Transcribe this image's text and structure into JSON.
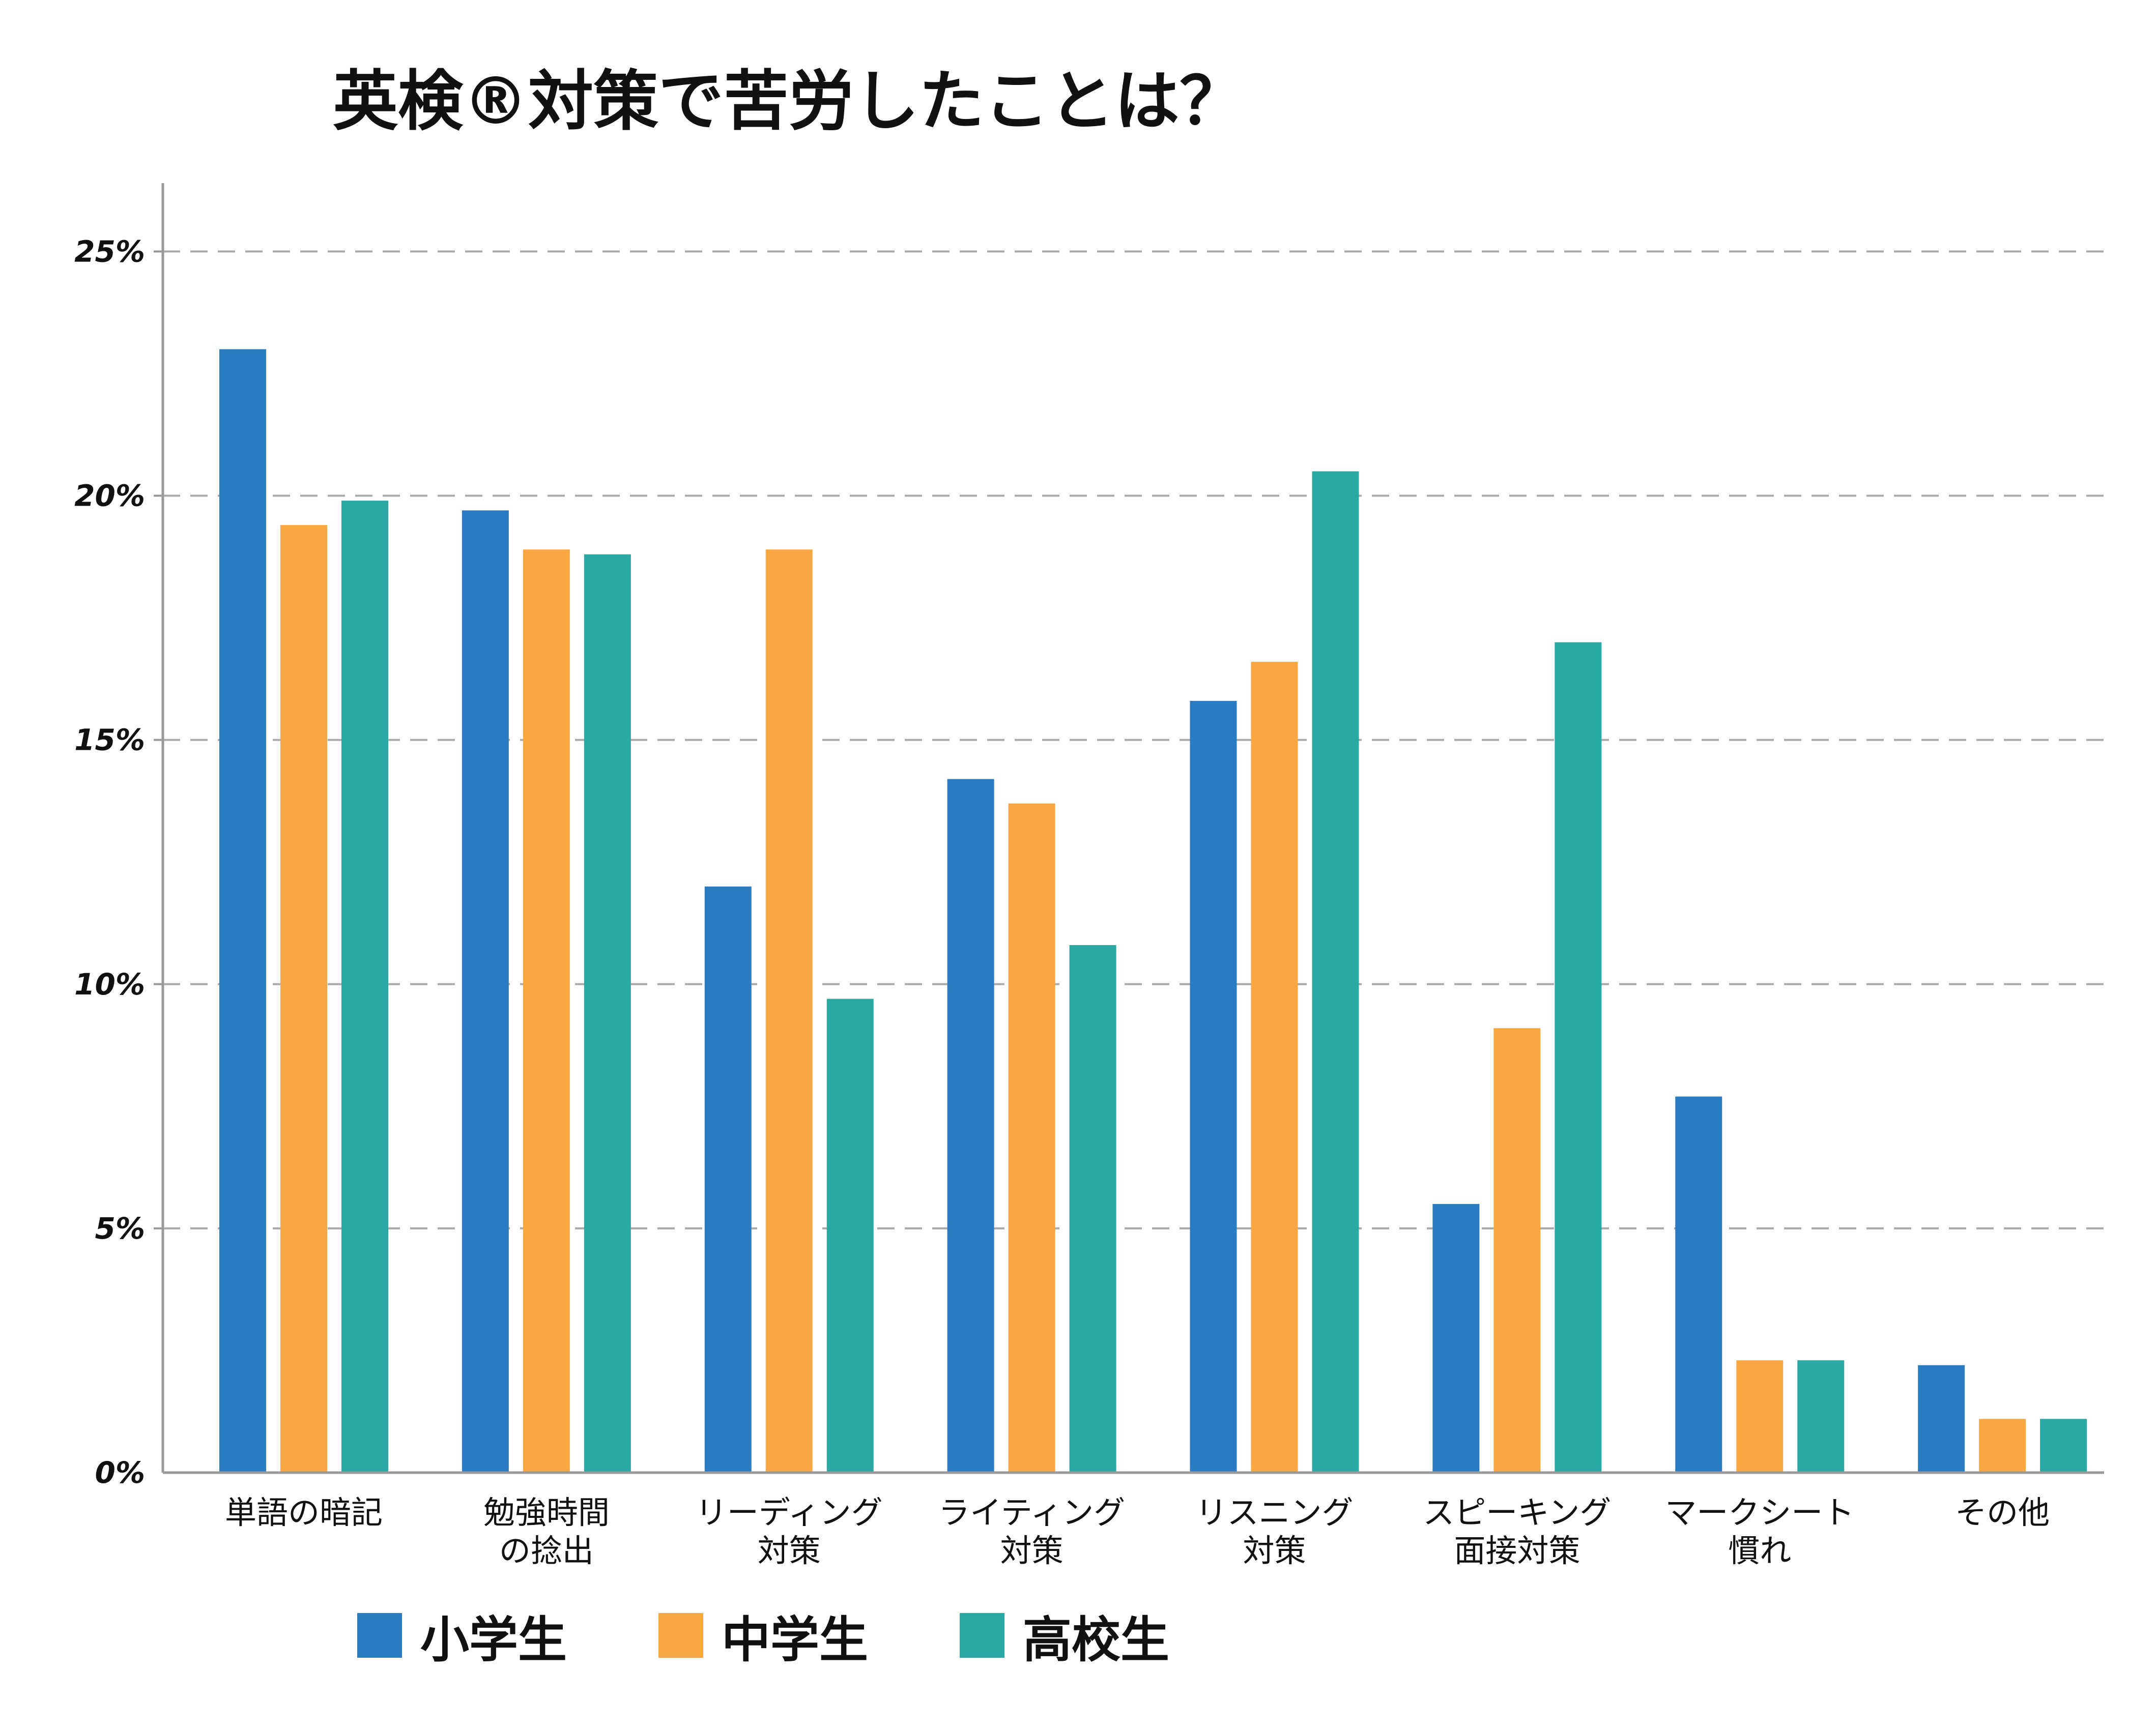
{
  "chart_data": {
    "type": "bar",
    "title": "英検®対策で苦労したことは？",
    "categories": [
      [
        "単語の暗記"
      ],
      [
        "勉強時間",
        "の捻出"
      ],
      [
        "リーディング",
        "対策"
      ],
      [
        "ライティング",
        "対策"
      ],
      [
        "リスニング",
        "対策"
      ],
      [
        "スピーキング",
        "面接対策"
      ],
      [
        "マークシート",
        "慣れ"
      ],
      [
        "その他"
      ]
    ],
    "series": [
      {
        "name": "小学生",
        "color": "#2a7bc1",
        "values": [
          23.0,
          19.7,
          12.0,
          14.2,
          15.8,
          5.5,
          7.7,
          2.2
        ]
      },
      {
        "name": "中学生",
        "color": "#f9a743",
        "values": [
          19.4,
          18.9,
          18.9,
          13.7,
          16.6,
          9.1,
          2.3,
          1.1
        ]
      },
      {
        "name": "高校生",
        "color": "#2aa8a3",
        "values": [
          19.9,
          18.8,
          9.7,
          10.8,
          20.5,
          17.0,
          2.3,
          1.1
        ]
      }
    ],
    "yticks": [
      "0%",
      "5%",
      "10%",
      "15%",
      "20%",
      "25%"
    ],
    "ytick_values": [
      0,
      5,
      10,
      15,
      20,
      25
    ],
    "ylim": [
      0,
      26.4
    ],
    "grid": true,
    "legend_position": "bottom"
  }
}
